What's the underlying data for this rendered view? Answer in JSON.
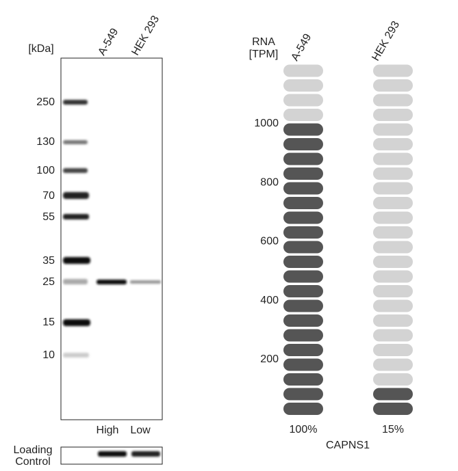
{
  "blot": {
    "unit_label": "[kDa]",
    "lanes": [
      "A-549",
      "HEK 293"
    ],
    "markers": [
      "250",
      "130",
      "100",
      "70",
      "55",
      "35",
      "25",
      "15",
      "10"
    ],
    "lane_levels": [
      "High",
      "Low"
    ],
    "loading_control": [
      "Loading",
      "Control"
    ]
  },
  "rna": {
    "axis_label": [
      "RNA",
      "[TPM]"
    ],
    "yticks": [
      200,
      400,
      600,
      800,
      1000
    ],
    "pills": 24,
    "lanes": [
      {
        "name": "A-549",
        "filled": 20,
        "percent": "100%"
      },
      {
        "name": "HEK 293",
        "filled": 2,
        "percent": "15%"
      }
    ],
    "gene": "CAPNS1"
  }
}
